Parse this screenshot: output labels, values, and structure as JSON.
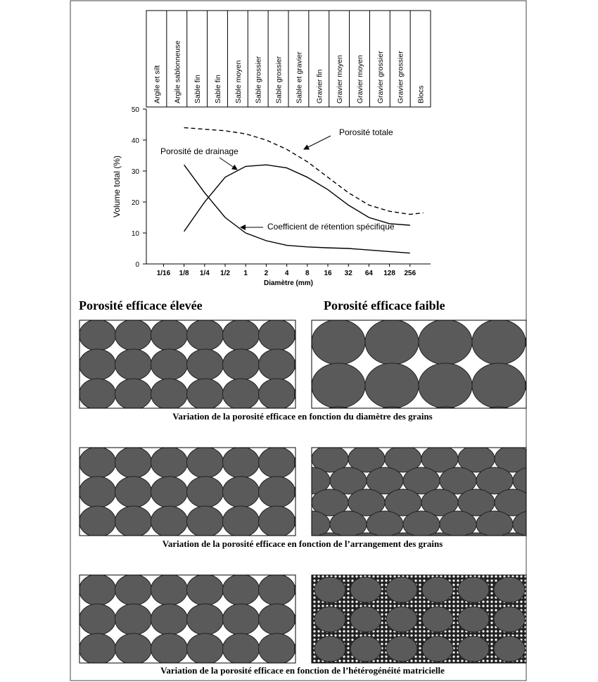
{
  "chart_data": {
    "type": "line",
    "size_classes": [
      "Argile et silt",
      "Argile sablonneuse",
      "Sable fin",
      "Sable fin",
      "Sable moyen",
      "Sable grossier",
      "Sable grossier",
      "Sable et gravier",
      "Gravier fin",
      "Gravier moyen",
      "Gravier moyen",
      "Gravier grossier",
      "Gravier grossier",
      "Blocs"
    ],
    "xlabel": "Diamètre (mm)",
    "ylabel": "Volume total (%)",
    "log_x": true,
    "xlim": [
      0.035,
      512
    ],
    "xticks": [
      {
        "value": 0.0625,
        "label": "1/16"
      },
      {
        "value": 0.125,
        "label": "1/8"
      },
      {
        "value": 0.25,
        "label": "1/4"
      },
      {
        "value": 0.5,
        "label": "1/2"
      },
      1,
      2,
      4,
      8,
      16,
      32,
      64,
      128,
      256
    ],
    "ylim": [
      0,
      50
    ],
    "yticks": [
      0,
      10,
      20,
      30,
      40,
      50
    ],
    "series": [
      {
        "name": "Porosité totale",
        "color": "#000000",
        "dashed": true,
        "x": [
          0.125,
          0.25,
          0.5,
          1,
          2,
          4,
          8,
          16,
          32,
          64,
          128,
          256,
          400
        ],
        "y": [
          44,
          43.5,
          43,
          42,
          40,
          37,
          33,
          28,
          23,
          19,
          17,
          16,
          16.5
        ]
      },
      {
        "name": "Porosité de drainage",
        "color": "#000000",
        "dashed": false,
        "x": [
          0.125,
          0.25,
          0.5,
          1,
          2,
          4,
          8,
          16,
          32,
          64,
          128,
          256
        ],
        "y": [
          10.5,
          20,
          28,
          31.5,
          32,
          31,
          28,
          24,
          19,
          15,
          13,
          12.5
        ]
      },
      {
        "name": "Coefficient de rétention spécifique",
        "color": "#000000",
        "dashed": false,
        "x": [
          0.125,
          0.25,
          0.5,
          1,
          2,
          4,
          8,
          16,
          32,
          64,
          128,
          256
        ],
        "y": [
          32,
          23,
          15,
          10,
          7.5,
          6,
          5.5,
          5.2,
          5,
          4.5,
          4,
          3.5
        ]
      }
    ]
  },
  "diagrams": {
    "heading_left": "Porosité efficace élevée",
    "heading_right": "Porosité efficace faible",
    "captions": [
      "Variation de la porosité efficace en fonction du diamètre des grains",
      "Variation de la porosité efficace en fonction de l’arrangement des grains",
      "Variation de la porosité efficace en fonction de l’hétérogénéité matricielle"
    ]
  }
}
